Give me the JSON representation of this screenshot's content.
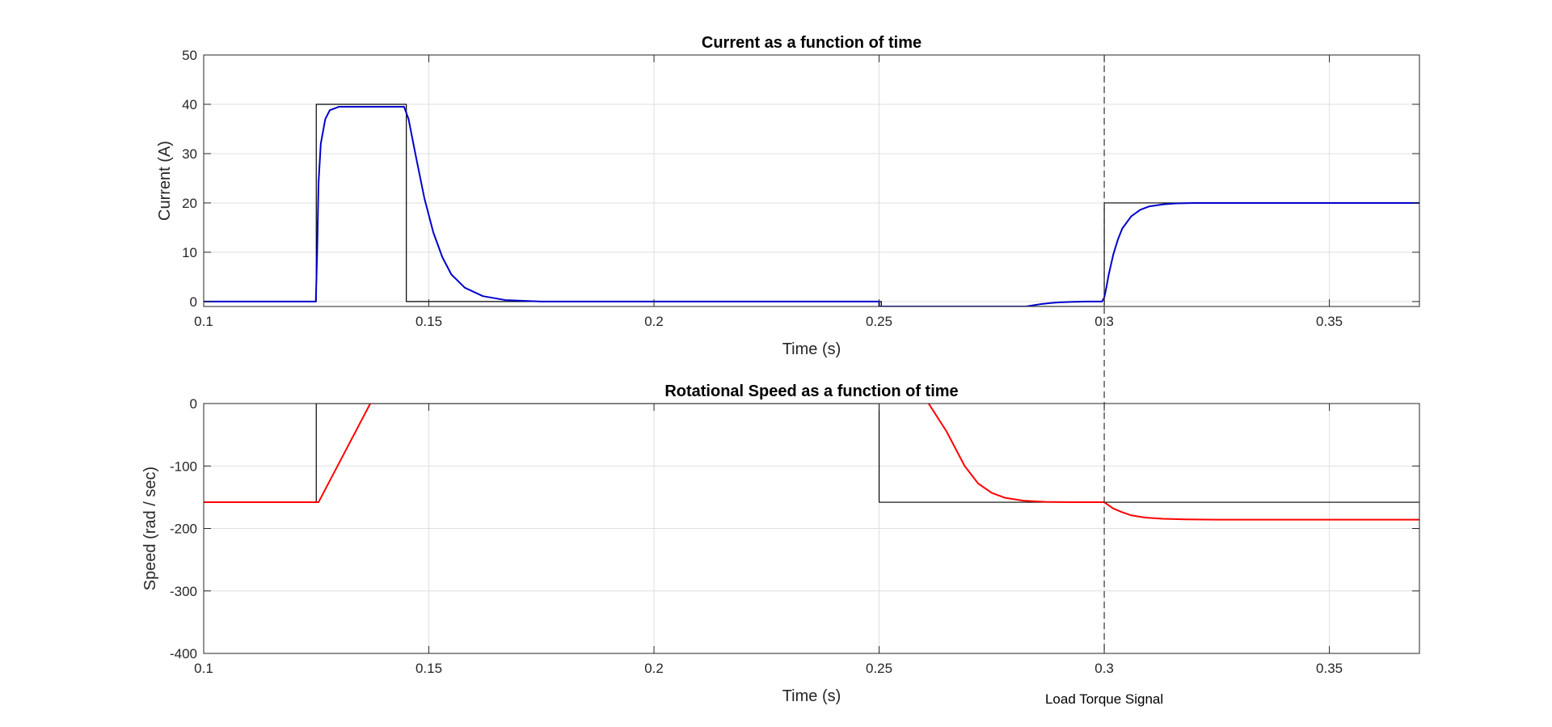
{
  "chart_data": [
    {
      "type": "line",
      "title": "Current as a function of time",
      "xlabel": "Time (s)",
      "ylabel": "Current (A)",
      "xlim": [
        0.1,
        0.37
      ],
      "ylim": [
        -1,
        50
      ],
      "xticks": [
        0.1,
        0.15,
        0.2,
        0.25,
        0.3,
        0.35
      ],
      "xtick_labels": [
        "0.1",
        "0.15",
        "0.2",
        "0.25",
        "0.3",
        "0.35"
      ],
      "yticks": [
        0,
        10,
        20,
        30,
        40,
        50
      ],
      "ytick_labels": [
        "0",
        "10",
        "20",
        "30",
        "40",
        "50"
      ],
      "grid": true,
      "series": [
        {
          "color": "#000000",
          "x": [
            0.1,
            0.125,
            0.125,
            0.145,
            0.145,
            0.25,
            0.25,
            0.2505,
            0.2505,
            0.3,
            0.3,
            0.37
          ],
          "y": [
            0,
            0,
            40,
            40,
            0,
            0,
            0,
            0,
            -1,
            -1,
            20,
            20
          ]
        },
        {
          "color": "#0000cc",
          "x": [
            0.1,
            0.1249,
            0.1252,
            0.1255,
            0.126,
            0.127,
            0.128,
            0.13,
            0.135,
            0.1445,
            0.1455,
            0.147,
            0.149,
            0.151,
            0.153,
            0.155,
            0.158,
            0.162,
            0.167,
            0.175,
            0.25,
            0.25,
            0.2826,
            0.284,
            0.286,
            0.288,
            0.29,
            0.293,
            0.296,
            0.2995,
            0.3,
            0.3005,
            0.301,
            0.302,
            0.303,
            0.304,
            0.306,
            0.308,
            0.31,
            0.313,
            0.316,
            0.32,
            0.325,
            0.33,
            0.37
          ],
          "y": [
            0,
            0,
            10,
            24,
            32,
            37,
            38.8,
            39.5,
            39.5,
            39.5,
            37,
            30,
            21,
            14,
            9,
            5.5,
            2.8,
            1.1,
            0.3,
            0,
            0,
            -1,
            -1,
            -0.8,
            -0.5,
            -0.3,
            -0.15,
            -0.05,
            0,
            0,
            0.8,
            3,
            5.5,
            9.5,
            12.5,
            14.8,
            17.3,
            18.6,
            19.3,
            19.7,
            19.9,
            20,
            20,
            20,
            20
          ]
        }
      ]
    },
    {
      "type": "line",
      "title": "Rotational Speed as a function of time",
      "xlabel": "Time (s)",
      "ylabel": "Speed (rad / sec)",
      "xlim": [
        0.1,
        0.37
      ],
      "ylim": [
        -400,
        0
      ],
      "xticks": [
        0.1,
        0.15,
        0.2,
        0.25,
        0.3,
        0.35
      ],
      "xtick_labels": [
        "0.1",
        "0.15",
        "0.2",
        "0.25",
        "0.3",
        "0.35"
      ],
      "yticks": [
        0,
        -100,
        -200,
        -300,
        -400
      ],
      "ytick_labels": [
        "0",
        "-100",
        "-200",
        "-300",
        "-400"
      ],
      "grid": true,
      "series": [
        {
          "color": "#000000",
          "x": [
            0.1,
            0.125,
            0.125,
            0.25,
            0.25,
            0.37
          ],
          "y": [
            -158,
            -158,
            0,
            0,
            -158,
            -158
          ]
        },
        {
          "color": "#ff0000",
          "x": [
            0.1,
            0.1255,
            0.137,
            0.14
          ],
          "y": [
            -158,
            -158,
            0,
            40
          ]
        },
        {
          "color": "#ff0000",
          "x": [
            0.259,
            0.261,
            0.265,
            0.269,
            0.272,
            0.275,
            0.278,
            0.282,
            0.287,
            0.293,
            0.3,
            0.301,
            0.302,
            0.304,
            0.306,
            0.309,
            0.313,
            0.318,
            0.325,
            0.335,
            0.37
          ],
          "y": [
            30,
            0,
            -45,
            -100,
            -128,
            -143,
            -151,
            -155.5,
            -157.5,
            -158,
            -158,
            -163,
            -168,
            -174,
            -179,
            -182.5,
            -184.5,
            -185.5,
            -186,
            -186,
            -186
          ]
        }
      ]
    }
  ],
  "annotation": {
    "text": "Load Torque Signal",
    "x": 0.3
  }
}
